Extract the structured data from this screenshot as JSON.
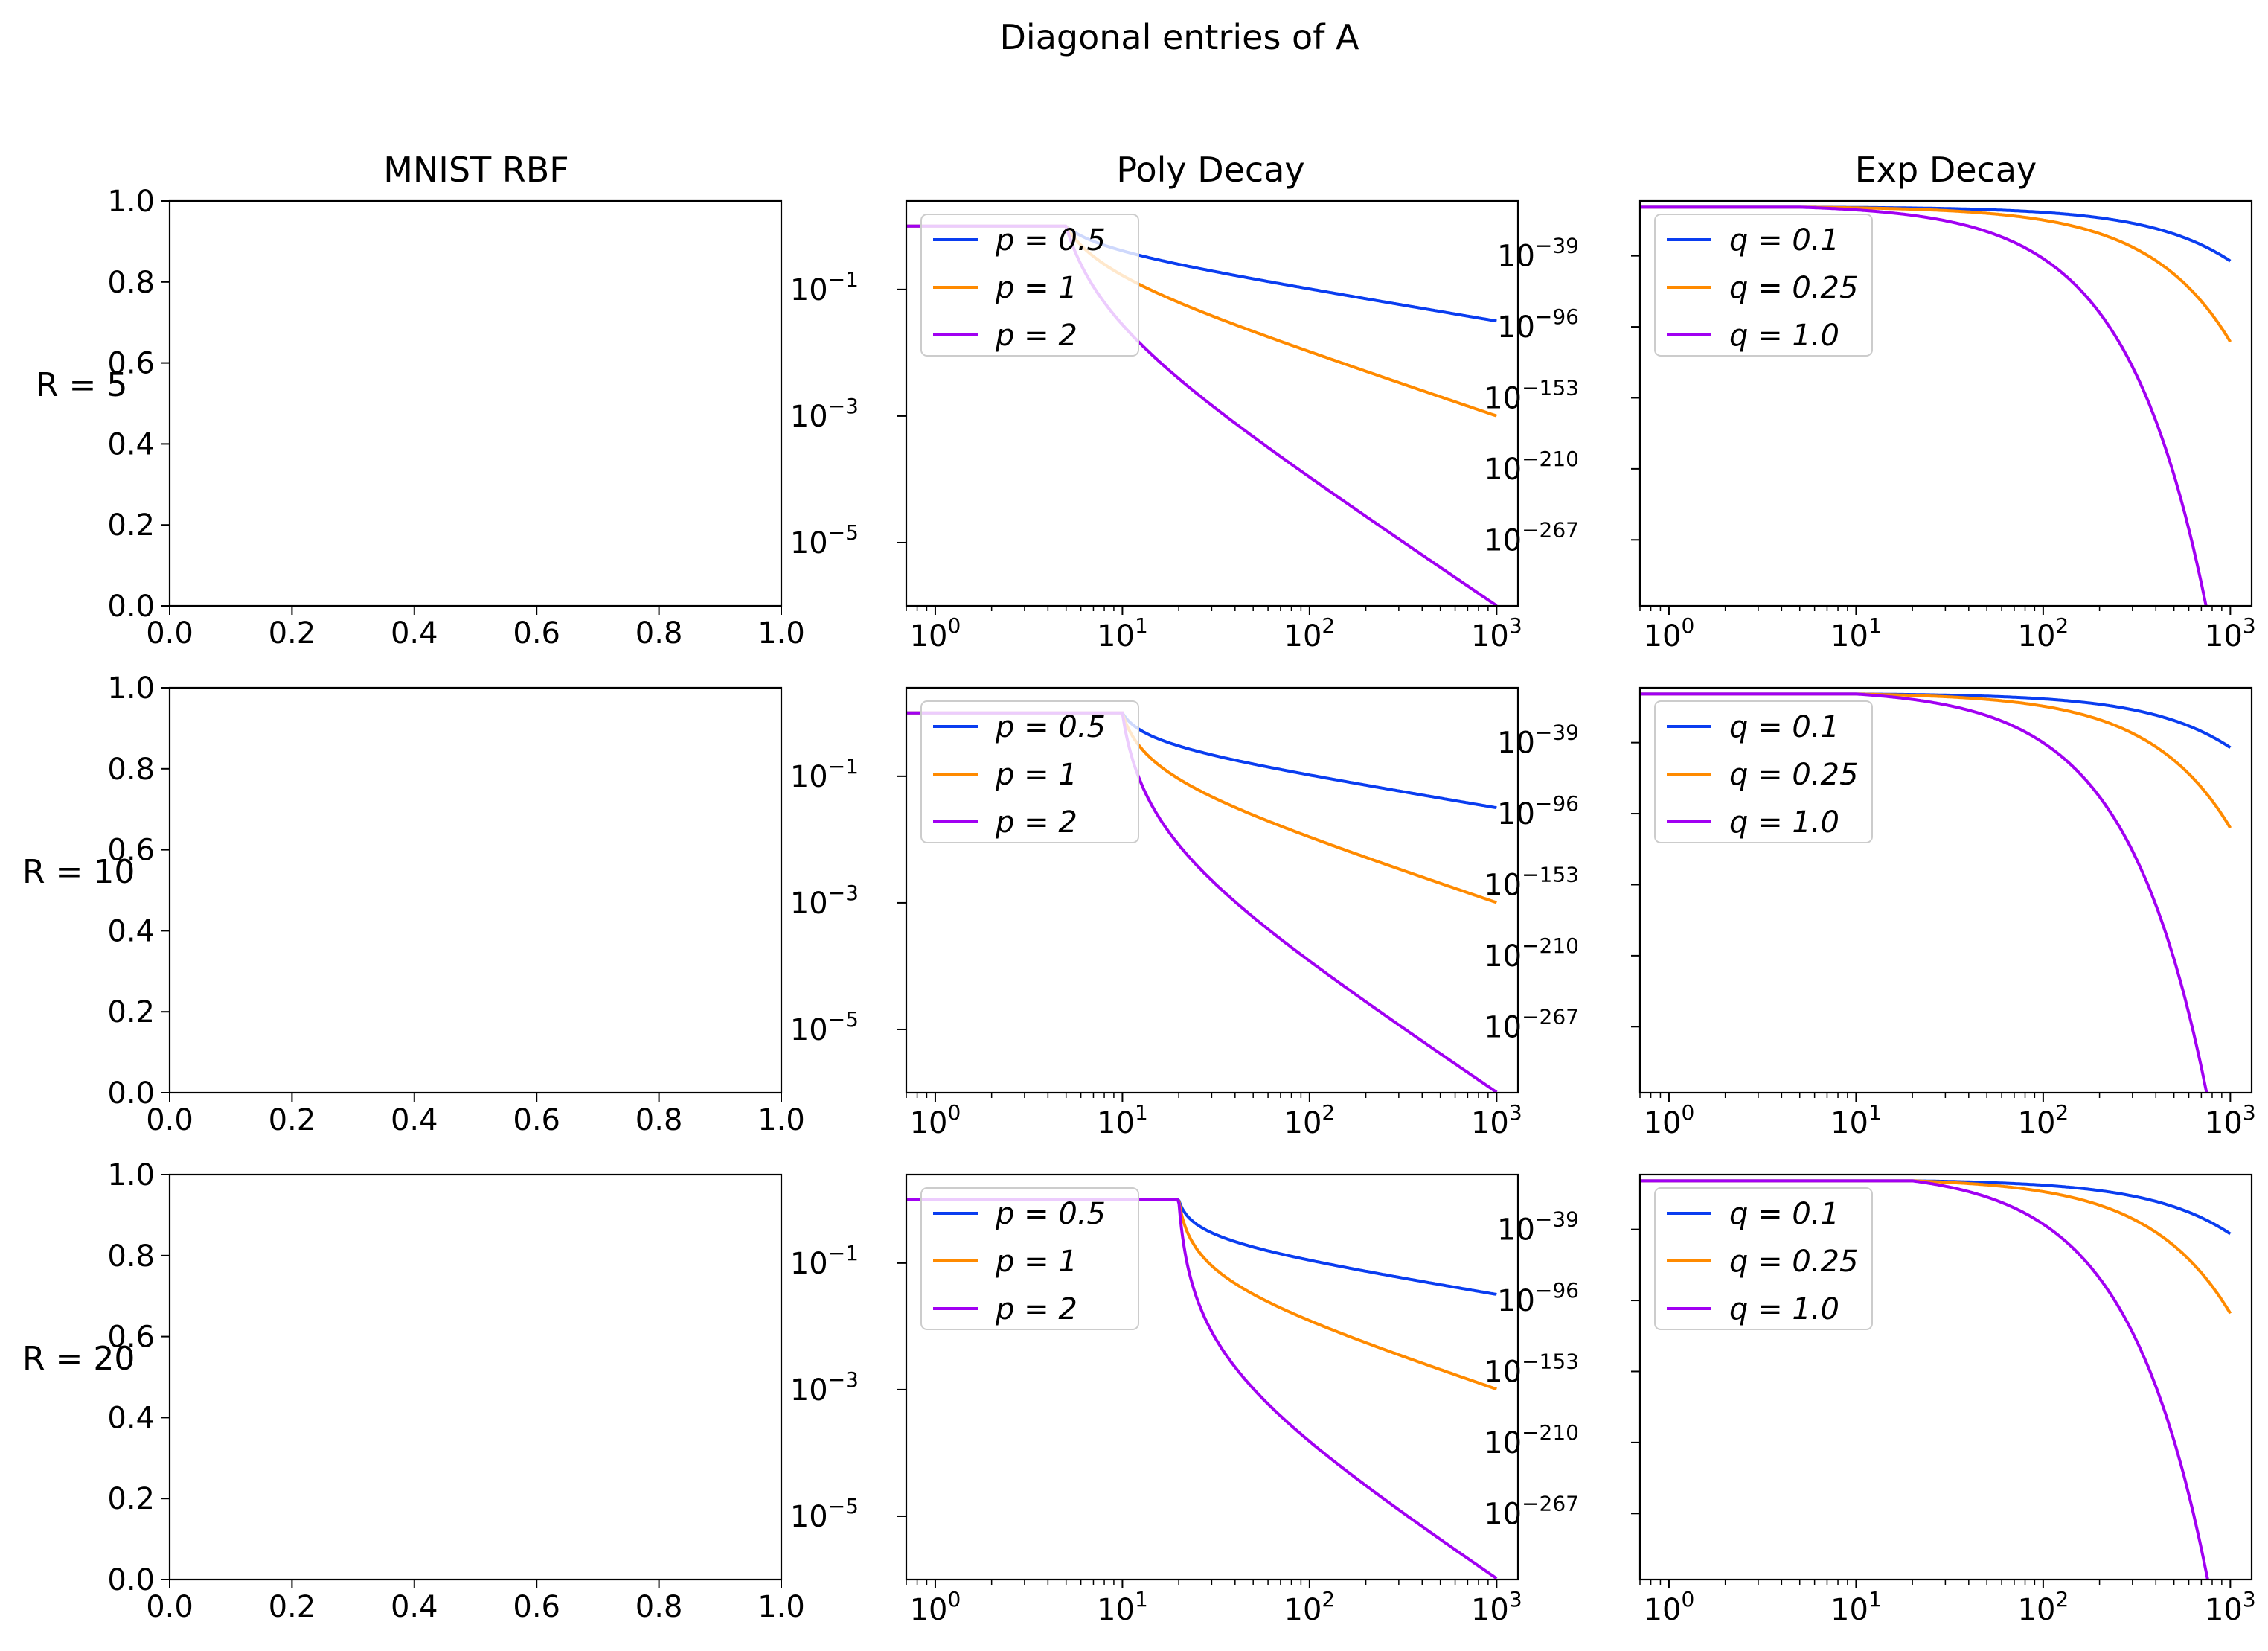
{
  "figure": {
    "suptitle": "Diagonal entries of A",
    "column_titles": [
      "MNIST RBF",
      "Poly Decay",
      "Exp Decay"
    ],
    "row_labels": [
      "R = 5",
      "R = 10",
      "R = 20"
    ]
  },
  "chart_data": [
    {
      "id": "mnist-rbf-r5",
      "type": "line",
      "title": "MNIST RBF",
      "row_label": "R = 5",
      "xlim": [
        0,
        1
      ],
      "ylim": [
        0,
        1
      ],
      "x_ticks": [
        "0.0",
        "0.2",
        "0.4",
        "0.6",
        "0.8",
        "1.0"
      ],
      "y_ticks": [
        "0.0",
        "0.2",
        "0.4",
        "0.6",
        "0.8",
        "1.0"
      ],
      "series": []
    },
    {
      "id": "poly-decay-r5",
      "type": "line",
      "title": "Poly Decay",
      "xscale": "log",
      "yscale": "log",
      "R": 5,
      "n": 1000,
      "xlim": [
        0.7,
        1300
      ],
      "ylim": [
        1e-06,
        2.5
      ],
      "x_ticks": [
        {
          "base": "10",
          "exp": "0"
        },
        {
          "base": "10",
          "exp": "1"
        },
        {
          "base": "10",
          "exp": "2"
        },
        {
          "base": "10",
          "exp": "3"
        }
      ],
      "y_ticks": [
        {
          "base": "10",
          "exp": "−1",
          "value": 0.1
        },
        {
          "base": "10",
          "exp": "−3",
          "value": 0.001
        },
        {
          "base": "10",
          "exp": "−5",
          "value": 1e-05
        }
      ],
      "legend": "upper left",
      "series": [
        {
          "name": "p = 0.5",
          "legend_label": "p = 0.5",
          "exponent": 0.5,
          "color": "#0a3df0"
        },
        {
          "name": "p = 1",
          "legend_label": "p = 1",
          "exponent": 1,
          "color": "#ff8a00"
        },
        {
          "name": "p = 2",
          "legend_label": "p = 2",
          "exponent": 2,
          "color": "#a100f2"
        }
      ]
    },
    {
      "id": "exp-decay-r5",
      "type": "line",
      "title": "Exp Decay",
      "xscale": "log",
      "yscale": "log",
      "R": 5,
      "n": 1000,
      "xlim": [
        0.7,
        1300
      ],
      "ylim_log10": [
        -320,
        5
      ],
      "x_ticks": [
        {
          "base": "10",
          "exp": "0"
        },
        {
          "base": "10",
          "exp": "1"
        },
        {
          "base": "10",
          "exp": "2"
        },
        {
          "base": "10",
          "exp": "3"
        }
      ],
      "y_ticks": [
        {
          "base": "10",
          "exp": "−39",
          "value": -39
        },
        {
          "base": "10",
          "exp": "−96",
          "value": -96
        },
        {
          "base": "10",
          "exp": "−153",
          "value": -153
        },
        {
          "base": "10",
          "exp": "−210",
          "value": -210
        },
        {
          "base": "10",
          "exp": "−267",
          "value": -267
        }
      ],
      "legend": "upper left",
      "series": [
        {
          "name": "q = 0.1",
          "legend_label": "q = 0.1",
          "rate": 0.1,
          "color": "#0a3df0"
        },
        {
          "name": "q = 0.25",
          "legend_label": "q = 0.25",
          "rate": 0.25,
          "color": "#ff8a00"
        },
        {
          "name": "q = 1.0",
          "legend_label": "q = 1.0",
          "rate": 1.0,
          "color": "#a100f2"
        }
      ]
    },
    {
      "id": "mnist-rbf-r10",
      "type": "line",
      "title": "",
      "row_label": "R = 10",
      "xlim": [
        0,
        1
      ],
      "ylim": [
        0,
        1
      ],
      "x_ticks": [
        "0.0",
        "0.2",
        "0.4",
        "0.6",
        "0.8",
        "1.0"
      ],
      "y_ticks": [
        "0.0",
        "0.2",
        "0.4",
        "0.6",
        "0.8",
        "1.0"
      ],
      "series": []
    },
    {
      "id": "poly-decay-r10",
      "type": "line",
      "title": "",
      "xscale": "log",
      "yscale": "log",
      "R": 10,
      "n": 1000,
      "xlim": [
        0.7,
        1300
      ],
      "ylim": [
        1e-06,
        2.5
      ],
      "x_ticks": [
        {
          "base": "10",
          "exp": "0"
        },
        {
          "base": "10",
          "exp": "1"
        },
        {
          "base": "10",
          "exp": "2"
        },
        {
          "base": "10",
          "exp": "3"
        }
      ],
      "y_ticks": [
        {
          "base": "10",
          "exp": "−1",
          "value": 0.1
        },
        {
          "base": "10",
          "exp": "−3",
          "value": 0.001
        },
        {
          "base": "10",
          "exp": "−5",
          "value": 1e-05
        }
      ],
      "legend": "upper left",
      "series": [
        {
          "name": "p = 0.5",
          "legend_label": "p = 0.5",
          "exponent": 0.5,
          "color": "#0a3df0"
        },
        {
          "name": "p = 1",
          "legend_label": "p = 1",
          "exponent": 1,
          "color": "#ff8a00"
        },
        {
          "name": "p = 2",
          "legend_label": "p = 2",
          "exponent": 2,
          "color": "#a100f2"
        }
      ]
    },
    {
      "id": "exp-decay-r10",
      "type": "line",
      "title": "",
      "xscale": "log",
      "yscale": "log",
      "R": 10,
      "n": 1000,
      "xlim": [
        0.7,
        1300
      ],
      "ylim_log10": [
        -320,
        5
      ],
      "x_ticks": [
        {
          "base": "10",
          "exp": "0"
        },
        {
          "base": "10",
          "exp": "1"
        },
        {
          "base": "10",
          "exp": "2"
        },
        {
          "base": "10",
          "exp": "3"
        }
      ],
      "y_ticks": [
        {
          "base": "10",
          "exp": "−39",
          "value": -39
        },
        {
          "base": "10",
          "exp": "−96",
          "value": -96
        },
        {
          "base": "10",
          "exp": "−153",
          "value": -153
        },
        {
          "base": "10",
          "exp": "−210",
          "value": -210
        },
        {
          "base": "10",
          "exp": "−267",
          "value": -267
        }
      ],
      "legend": "upper left",
      "series": [
        {
          "name": "q = 0.1",
          "legend_label": "q = 0.1",
          "rate": 0.1,
          "color": "#0a3df0"
        },
        {
          "name": "q = 0.25",
          "legend_label": "q = 0.25",
          "rate": 0.25,
          "color": "#ff8a00"
        },
        {
          "name": "q = 1.0",
          "legend_label": "q = 1.0",
          "rate": 1.0,
          "color": "#a100f2"
        }
      ]
    },
    {
      "id": "mnist-rbf-r20",
      "type": "line",
      "title": "",
      "row_label": "R = 20",
      "xlim": [
        0,
        1
      ],
      "ylim": [
        0,
        1
      ],
      "x_ticks": [
        "0.0",
        "0.2",
        "0.4",
        "0.6",
        "0.8",
        "1.0"
      ],
      "y_ticks": [
        "0.0",
        "0.2",
        "0.4",
        "0.6",
        "0.8",
        "1.0"
      ],
      "series": []
    },
    {
      "id": "poly-decay-r20",
      "type": "line",
      "title": "",
      "xscale": "log",
      "yscale": "log",
      "R": 20,
      "n": 1000,
      "xlim": [
        0.7,
        1300
      ],
      "ylim": [
        1e-06,
        2.5
      ],
      "x_ticks": [
        {
          "base": "10",
          "exp": "0"
        },
        {
          "base": "10",
          "exp": "1"
        },
        {
          "base": "10",
          "exp": "2"
        },
        {
          "base": "10",
          "exp": "3"
        }
      ],
      "y_ticks": [
        {
          "base": "10",
          "exp": "−1",
          "value": 0.1
        },
        {
          "base": "10",
          "exp": "−3",
          "value": 0.001
        },
        {
          "base": "10",
          "exp": "−5",
          "value": 1e-05
        }
      ],
      "legend": "upper left",
      "series": [
        {
          "name": "p = 0.5",
          "legend_label": "p = 0.5",
          "exponent": 0.5,
          "color": "#0a3df0"
        },
        {
          "name": "p = 1",
          "legend_label": "p = 1",
          "exponent": 1,
          "color": "#ff8a00"
        },
        {
          "name": "p = 2",
          "legend_label": "p = 2",
          "exponent": 2,
          "color": "#a100f2"
        }
      ]
    },
    {
      "id": "exp-decay-r20",
      "type": "line",
      "title": "",
      "xscale": "log",
      "yscale": "log",
      "R": 20,
      "n": 1000,
      "xlim": [
        0.7,
        1300
      ],
      "ylim_log10": [
        -320,
        5
      ],
      "x_ticks": [
        {
          "base": "10",
          "exp": "0"
        },
        {
          "base": "10",
          "exp": "1"
        },
        {
          "base": "10",
          "exp": "2"
        },
        {
          "base": "10",
          "exp": "3"
        }
      ],
      "y_ticks": [
        {
          "base": "10",
          "exp": "−39",
          "value": -39
        },
        {
          "base": "10",
          "exp": "−96",
          "value": -96
        },
        {
          "base": "10",
          "exp": "−153",
          "value": -153
        },
        {
          "base": "10",
          "exp": "−210",
          "value": -210
        },
        {
          "base": "10",
          "exp": "−267",
          "value": -267
        }
      ],
      "legend": "upper left",
      "series": [
        {
          "name": "q = 0.1",
          "legend_label": "q = 0.1",
          "rate": 0.1,
          "color": "#0a3df0"
        },
        {
          "name": "q = 0.25",
          "legend_label": "q = 0.25",
          "rate": 0.25,
          "color": "#ff8a00"
        },
        {
          "name": "q = 1.0",
          "legend_label": "q = 1.0",
          "rate": 1.0,
          "color": "#a100f2"
        }
      ]
    }
  ]
}
